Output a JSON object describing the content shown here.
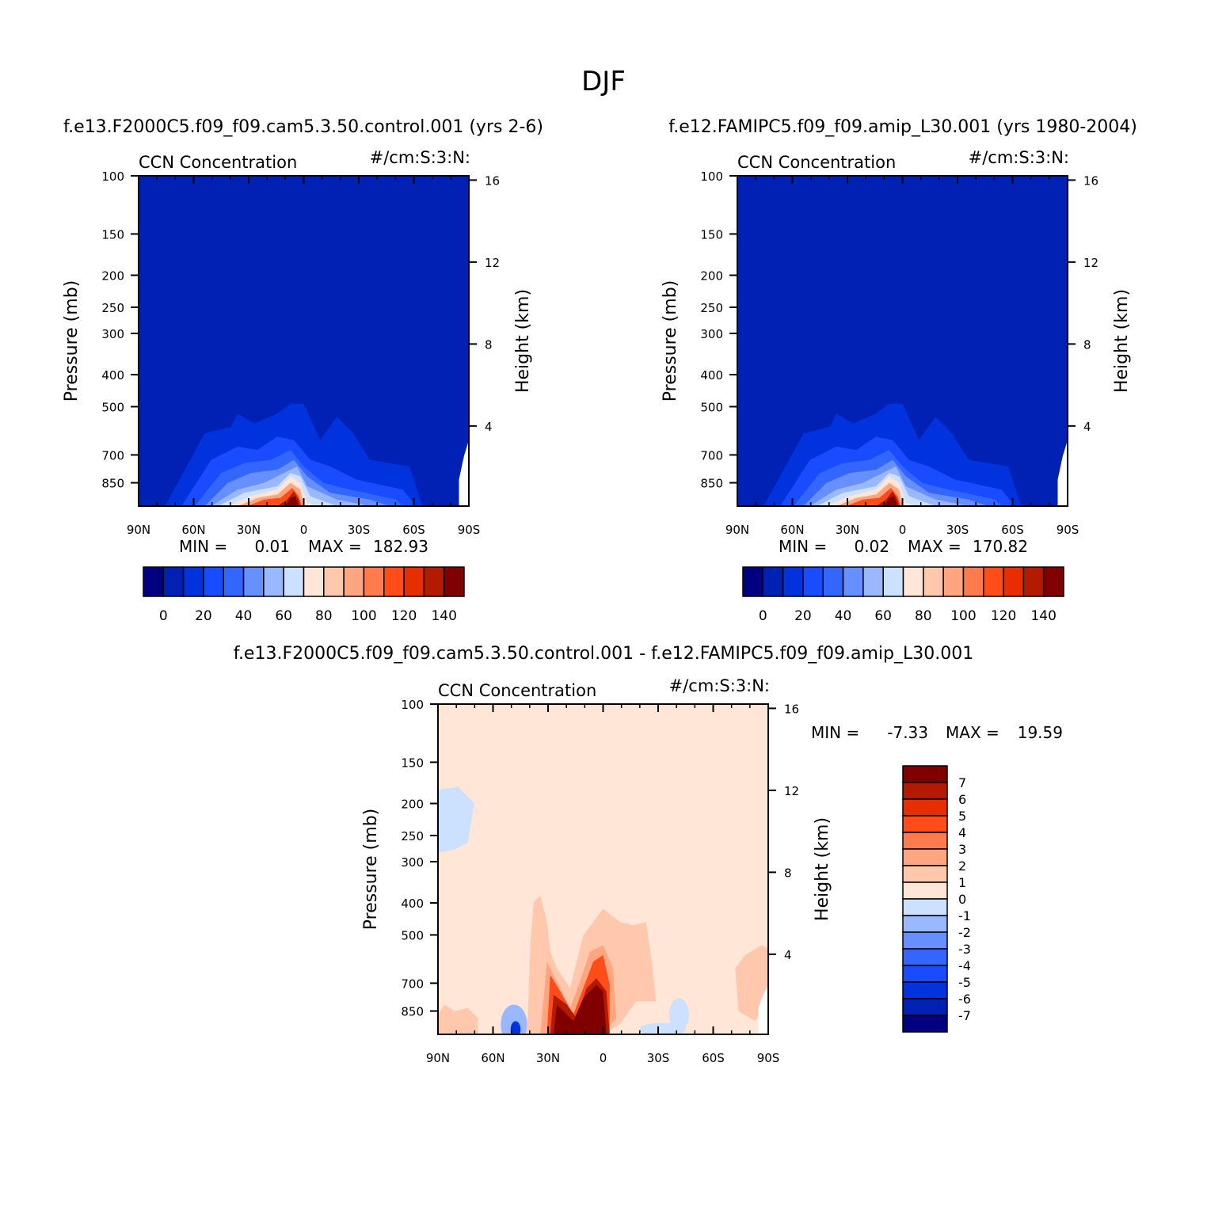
{
  "page_title": "DJF",
  "colors": {
    "blue_scale": [
      "#000080",
      "#0021b3",
      "#0033dd",
      "#1a4cff",
      "#3366ff",
      "#6690ff",
      "#99b8ff",
      "#cce0ff"
    ],
    "red_scale": [
      "#ffe6d6",
      "#ffc8ad",
      "#ffa580",
      "#ff7a4d",
      "#ff4d1a",
      "#e62e00",
      "#b31a00",
      "#800000"
    ]
  },
  "chart_data": [
    {
      "type": "heatmap",
      "panel": "top-left",
      "title": "f.e13.F2000C5.f09_f09.cam5.3.50.control.001 (yrs 2-6)",
      "left_label": "CCN Concentration",
      "right_label": "#/cm:S:3:N:",
      "ylabel": "Pressure (mb)",
      "ylabel_right": "Height (km)",
      "x_ticks": [
        "90N",
        "60N",
        "30N",
        "0",
        "30S",
        "60S",
        "90S"
      ],
      "y_ticks": [
        "100",
        "150",
        "200",
        "250",
        "300",
        "400",
        "500",
        "700",
        "850"
      ],
      "y_right_ticks": [
        "16",
        "12",
        "8",
        "4"
      ],
      "stats": {
        "min_label": "MIN =",
        "min": "0.01",
        "max_label": "MAX =",
        "max": "182.93"
      },
      "colorbar": {
        "orientation": "horizontal",
        "labels": [
          "0",
          "20",
          "40",
          "60",
          "80",
          "100",
          "120",
          "140"
        ]
      }
    },
    {
      "type": "heatmap",
      "panel": "top-right",
      "title": "f.e12.FAMIPC5.f09_f09.amip_L30.001 (yrs 1980-2004)",
      "left_label": "CCN Concentration",
      "right_label": "#/cm:S:3:N:",
      "ylabel": "Pressure (mb)",
      "ylabel_right": "Height (km)",
      "x_ticks": [
        "90N",
        "60N",
        "30N",
        "0",
        "30S",
        "60S",
        "90S"
      ],
      "y_ticks": [
        "100",
        "150",
        "200",
        "250",
        "300",
        "400",
        "500",
        "700",
        "850"
      ],
      "y_right_ticks": [
        "16",
        "12",
        "8",
        "4"
      ],
      "stats": {
        "min_label": "MIN =",
        "min": "0.02",
        "max_label": "MAX =",
        "max": "170.82"
      },
      "colorbar": {
        "orientation": "horizontal",
        "labels": [
          "0",
          "20",
          "40",
          "60",
          "80",
          "100",
          "120",
          "140"
        ]
      }
    },
    {
      "type": "heatmap",
      "panel": "bottom",
      "title": "f.e13.F2000C5.f09_f09.cam5.3.50.control.001 - f.e12.FAMIPC5.f09_f09.amip_L30.001",
      "left_label": "CCN Concentration",
      "right_label": "#/cm:S:3:N:",
      "ylabel": "Pressure (mb)",
      "ylabel_right": "Height (km)",
      "x_ticks": [
        "90N",
        "60N",
        "30N",
        "0",
        "30S",
        "60S",
        "90S"
      ],
      "y_ticks": [
        "100",
        "150",
        "200",
        "250",
        "300",
        "400",
        "500",
        "700",
        "850"
      ],
      "y_right_ticks": [
        "16",
        "12",
        "8",
        "4"
      ],
      "stats": {
        "min_label": "MIN =",
        "min": "-7.33",
        "max_label": "MAX =",
        "max": "19.59"
      },
      "colorbar": {
        "orientation": "vertical",
        "labels": [
          "7",
          "6",
          "5",
          "4",
          "3",
          "2",
          "1",
          "0",
          "-1",
          "-2",
          "-3",
          "-4",
          "-5",
          "-6",
          "-7"
        ]
      }
    }
  ]
}
